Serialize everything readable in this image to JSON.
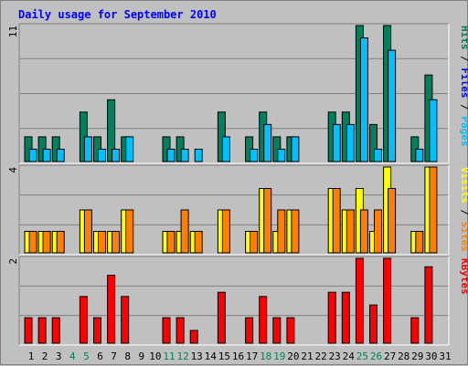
{
  "chart_data": {
    "type": "bar",
    "title": "Daily usage for September 2010",
    "categories": [
      "1",
      "2",
      "3",
      "4",
      "5",
      "6",
      "7",
      "8",
      "9",
      "10",
      "11",
      "12",
      "13",
      "14",
      "15",
      "16",
      "17",
      "18",
      "19",
      "20",
      "21",
      "22",
      "23",
      "24",
      "25",
      "26",
      "27",
      "28",
      "29",
      "30",
      "31"
    ],
    "weekend_days": [
      "4",
      "5",
      "11",
      "12",
      "18",
      "19",
      "25",
      "26"
    ],
    "colors": {
      "title": "#0000ff",
      "weekend_day": "#00805c",
      "weekday_day": "#000000",
      "hits": "#00805c",
      "files": "#00c0ff",
      "visits": "#ffff00",
      "sites": "#ff8000",
      "kbytes": "#ff0000",
      "plot_bg": "#c0c0c0",
      "grid": "#808080"
    },
    "panels": [
      {
        "ymax": 11,
        "ylabel": "11",
        "side_label": [
          {
            "text": "Pages",
            "color": "#00c0ff"
          },
          {
            "text": " / ",
            "color": "#000000"
          },
          {
            "text": "Files",
            "color": "#0000ff"
          },
          {
            "text": " / ",
            "color": "#000000"
          },
          {
            "text": "Hits",
            "color": "#00805c"
          }
        ],
        "series": [
          {
            "name": "Hits",
            "color": "#00805c",
            "values": [
              2,
              2,
              2,
              0,
              4,
              2,
              5,
              2,
              0,
              0,
              2,
              2,
              0,
              0,
              4,
              0,
              2,
              4,
              2,
              2,
              0,
              0,
              4,
              4,
              11,
              3,
              11,
              0,
              2,
              7,
              0
            ]
          },
          {
            "name": "Files",
            "color": "#00c0ff",
            "values": [
              1,
              1,
              1,
              0,
              2,
              1,
              1,
              2,
              0,
              0,
              1,
              1,
              1,
              0,
              2,
              0,
              1,
              3,
              1,
              2,
              0,
              0,
              3,
              3,
              10,
              1,
              9,
              0,
              1,
              5,
              0
            ]
          }
        ]
      },
      {
        "ymax": 4,
        "ylabel": "4",
        "side_label": [
          {
            "text": "Sites",
            "color": "#ff8000"
          },
          {
            "text": " / ",
            "color": "#000000"
          },
          {
            "text": "Visits",
            "color": "#ffff00"
          }
        ],
        "series": [
          {
            "name": "Visits",
            "color": "#ffff00",
            "values": [
              1,
              1,
              1,
              0,
              2,
              1,
              1,
              2,
              0,
              0,
              1,
              1,
              1,
              0,
              2,
              0,
              1,
              3,
              1,
              2,
              0,
              0,
              3,
              2,
              3,
              1,
              4,
              0,
              1,
              4,
              0
            ]
          },
          {
            "name": "Sites",
            "color": "#ff8000",
            "values": [
              1,
              1,
              1,
              0,
              2,
              1,
              1,
              2,
              0,
              0,
              1,
              2,
              1,
              0,
              2,
              0,
              1,
              3,
              2,
              2,
              0,
              0,
              3,
              2,
              2,
              2,
              3,
              0,
              1,
              4,
              0
            ]
          }
        ]
      },
      {
        "ymax": 2,
        "ylabel": "2",
        "side_label": [
          {
            "text": "KBytes",
            "color": "#ff0000"
          }
        ],
        "series": [
          {
            "name": "KBytes",
            "color": "#ff0000",
            "values": [
              0.6,
              0.6,
              0.6,
              0,
              1.1,
              0.6,
              1.6,
              1.1,
              0,
              0,
              0.6,
              0.6,
              0.3,
              0,
              1.2,
              0,
              0.6,
              1.1,
              0.6,
              0.6,
              0,
              0,
              1.2,
              1.2,
              2,
              0.9,
              2,
              0,
              0.6,
              1.8,
              0
            ]
          }
        ]
      }
    ]
  }
}
